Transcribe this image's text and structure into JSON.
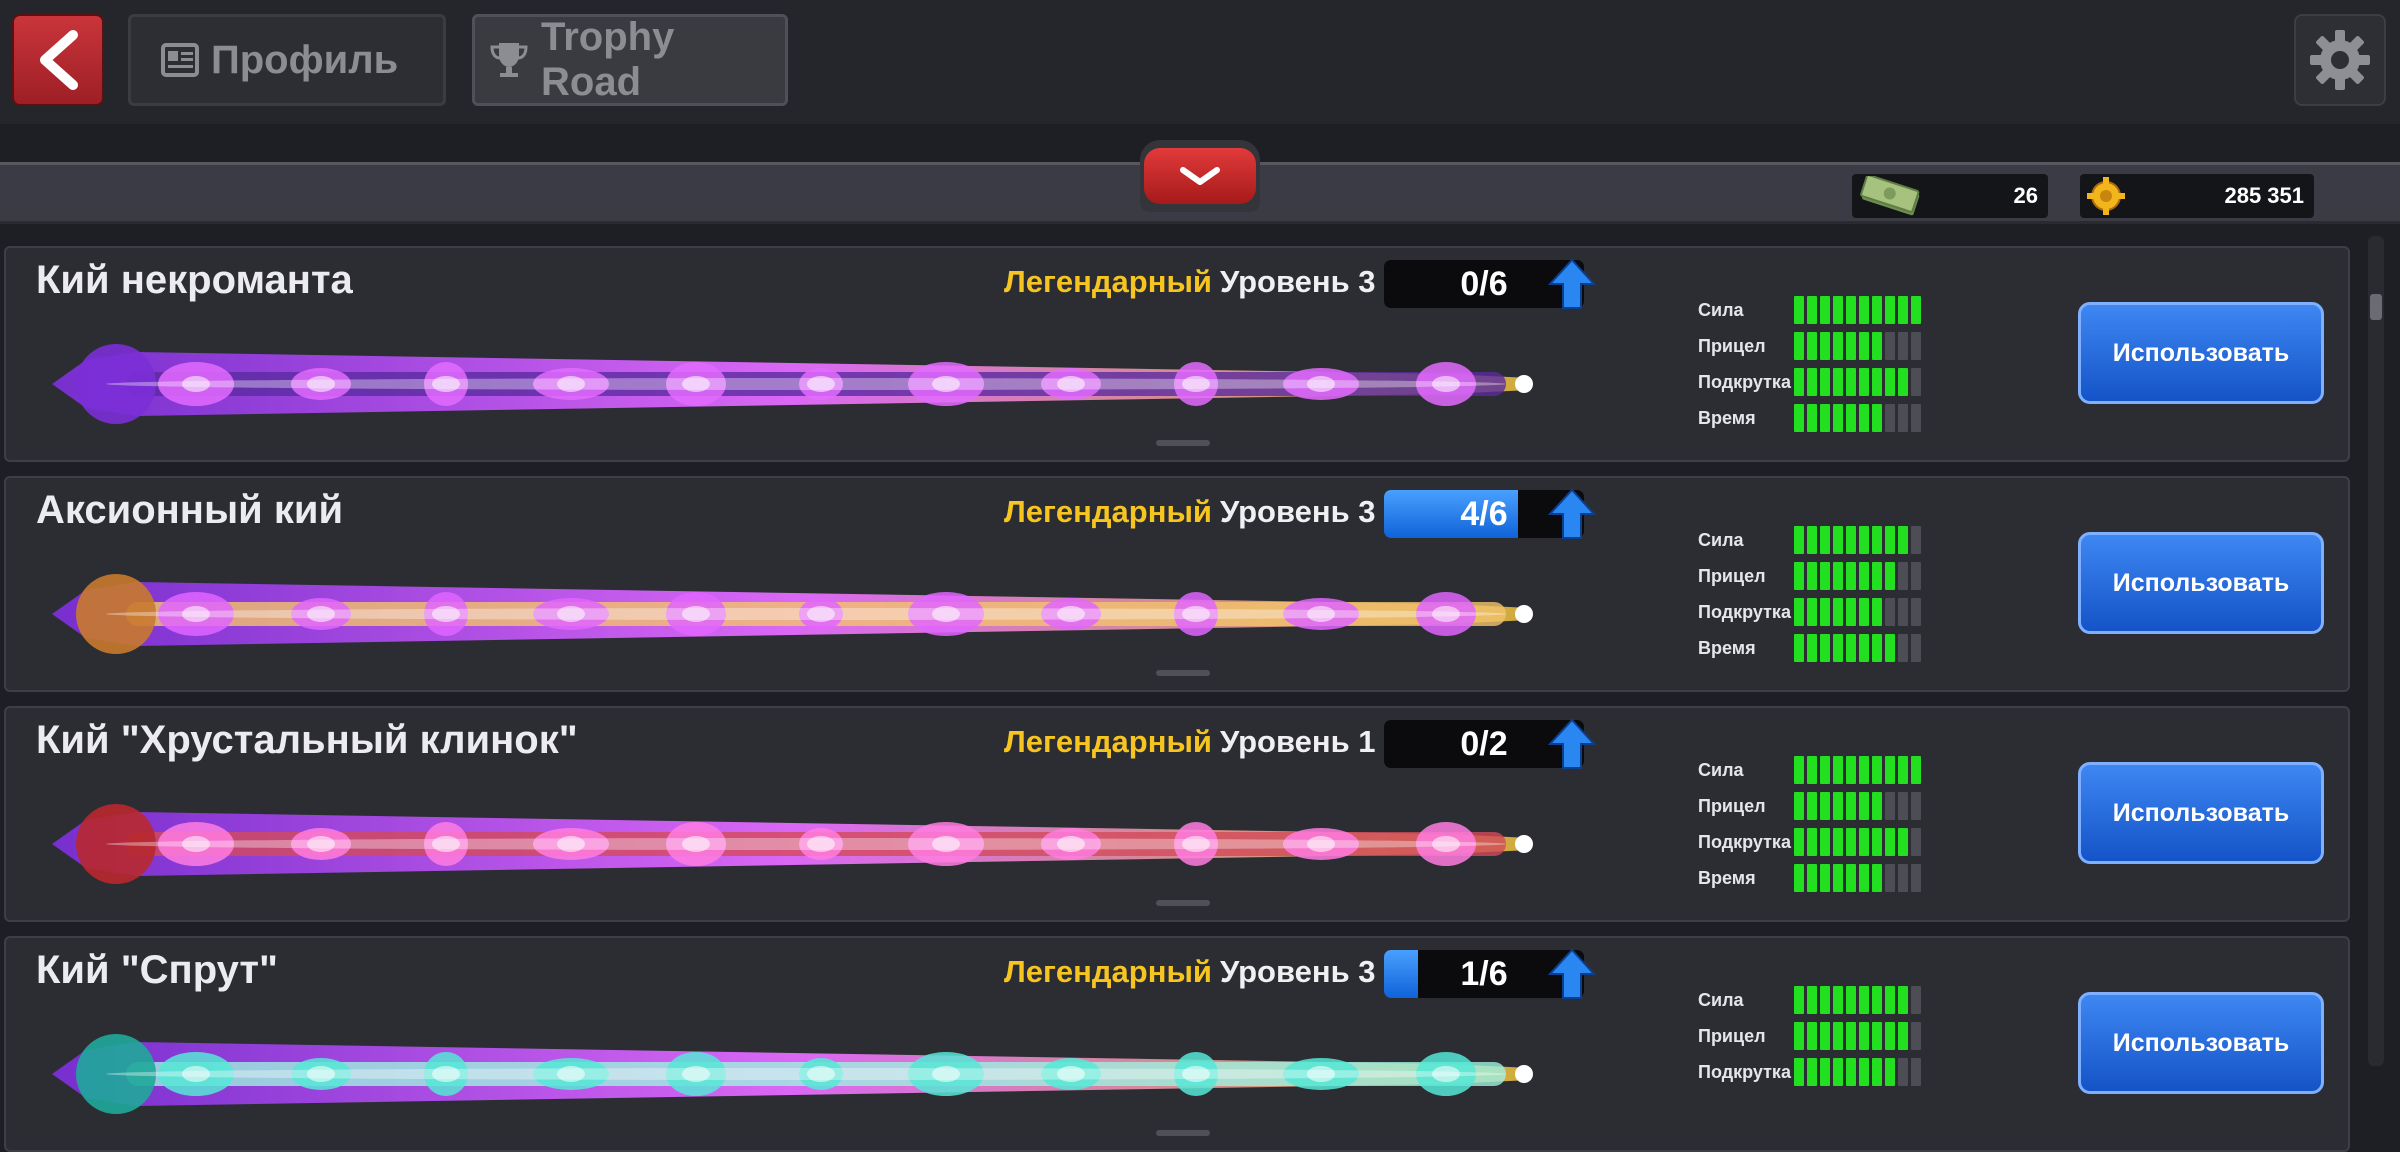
{
  "topbar": {
    "tabs": [
      {
        "label": "Профиль",
        "icon": "profile-card-icon"
      },
      {
        "label": "Trophy Road",
        "icon": "trophy-icon"
      }
    ],
    "back_icon": "chevron-left-icon",
    "settings_icon": "gear-icon"
  },
  "currency": {
    "cash": {
      "value": "26",
      "icon": "cash-icon"
    },
    "coins": {
      "value": "285 351",
      "icon": "coin-icon"
    }
  },
  "colors": {
    "rarity": "#f6c520",
    "stat_on": "#22e020",
    "button": "#1f6ee0",
    "back": "#c62f35"
  },
  "stat_max": 10,
  "cues": [
    {
      "name": "Кий некроманта",
      "rarity": "Легендарный",
      "level": "Уровень 3",
      "progress_text": "0/6",
      "progress_fraction": 0.0,
      "stats": [
        {
          "label": "Сила",
          "value": 10
        },
        {
          "label": "Прицел",
          "value": 7
        },
        {
          "label": "Подкрутка",
          "value": 9
        },
        {
          "label": "Время",
          "value": 7
        }
      ],
      "button": "Использовать",
      "cue_palette": [
        "#7b2fd6",
        "#e36bff",
        "#d9b43a",
        "#5a2aa0"
      ]
    },
    {
      "name": "Аксионный кий",
      "rarity": "Легендарный",
      "level": "Уровень 3",
      "progress_text": "4/6",
      "progress_fraction": 0.67,
      "stats": [
        {
          "label": "Сила",
          "value": 9
        },
        {
          "label": "Прицел",
          "value": 8
        },
        {
          "label": "Подкрутка",
          "value": 7
        },
        {
          "label": "Время",
          "value": 8
        }
      ],
      "button": "Использовать",
      "cue_palette": [
        "#c97a2c",
        "#e065ff",
        "#4a8cff",
        "#f2c36b"
      ]
    },
    {
      "name": "Кий \"Хрустальный клинок\"",
      "rarity": "Легендарный",
      "level": "Уровень 1",
      "progress_text": "0/2",
      "progress_fraction": 0.0,
      "stats": [
        {
          "label": "Сила",
          "value": 10
        },
        {
          "label": "Прицел",
          "value": 7
        },
        {
          "label": "Подкрутка",
          "value": 9
        },
        {
          "label": "Время",
          "value": 7
        }
      ],
      "button": "Использовать",
      "cue_palette": [
        "#b8282e",
        "#ff7de0",
        "#e8a08a",
        "#d24a5a"
      ]
    },
    {
      "name": "Кий \"Спрут\"",
      "rarity": "Легендарный",
      "level": "Уровень 3",
      "progress_text": "1/6",
      "progress_fraction": 0.17,
      "stats": [
        {
          "label": "Сила",
          "value": 9
        },
        {
          "label": "Прицел",
          "value": 9
        },
        {
          "label": "Подкрутка",
          "value": 8
        }
      ],
      "button": "Использовать",
      "cue_palette": [
        "#1fa89a",
        "#56e8d6",
        "#2a6ad0",
        "#9ef0e0"
      ]
    }
  ]
}
